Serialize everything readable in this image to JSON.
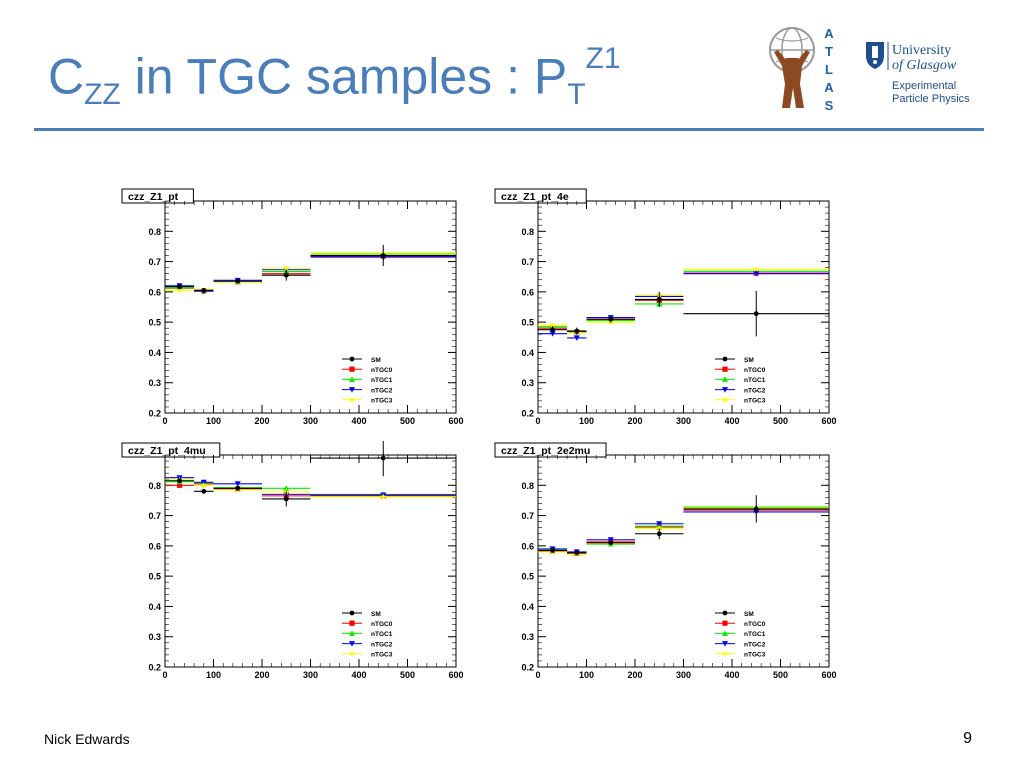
{
  "slide": {
    "title_base": "C",
    "title_sub": "ZZ",
    "title_mid": " in TGC samples : P",
    "title_sub2": "T",
    "title_sup": "Z1",
    "author": "Nick Edwards",
    "page_number": "9",
    "title_color": "#4a7ebb"
  },
  "logos": {
    "atlas_letters": [
      "A",
      "T",
      "L",
      "A",
      "S"
    ],
    "university_line1": "University",
    "university_line2": "of Glasgow",
    "dept_line1": "Experimental",
    "dept_line2": "Particle Physics"
  },
  "legend_entries": [
    {
      "label": "SM",
      "color": "#000000",
      "marker": "circle"
    },
    {
      "label": "nTGC0",
      "color": "#ff0000",
      "marker": "square"
    },
    {
      "label": "nTGC1",
      "color": "#00ee00",
      "marker": "triangle-up"
    },
    {
      "label": "nTGC2",
      "color": "#0000ff",
      "marker": "triangle-down"
    },
    {
      "label": "nTGC3",
      "color": "#ffff00",
      "marker": "star"
    }
  ],
  "chart_data": [
    {
      "type": "scatter",
      "title": "czz_Z1_pt",
      "xlim": [
        0,
        600
      ],
      "ylim": [
        0.2,
        0.9
      ],
      "xticks": [
        0,
        100,
        200,
        300,
        400,
        500,
        600
      ],
      "yticks": [
        0.2,
        0.3,
        0.4,
        0.5,
        0.6,
        0.7,
        0.8
      ],
      "bins": [
        [
          0,
          60
        ],
        [
          60,
          100
        ],
        [
          100,
          200
        ],
        [
          200,
          300
        ],
        [
          300,
          600
        ]
      ],
      "series": [
        {
          "name": "SM",
          "values": [
            0.617,
            0.605,
            0.635,
            0.655,
            0.72
          ],
          "errors": [
            0.006,
            0.006,
            0.006,
            0.018,
            0.035
          ]
        },
        {
          "name": "nTGC0",
          "values": [
            0.612,
            0.603,
            0.633,
            0.66,
            0.718
          ],
          "errors": [
            0,
            0,
            0,
            0,
            0
          ]
        },
        {
          "name": "nTGC1",
          "values": [
            0.613,
            0.605,
            0.634,
            0.667,
            0.725
          ],
          "errors": [
            0,
            0,
            0,
            0,
            0
          ]
        },
        {
          "name": "nTGC2",
          "values": [
            0.62,
            0.602,
            0.638,
            0.673,
            0.715
          ],
          "errors": [
            0,
            0,
            0,
            0,
            0
          ]
        },
        {
          "name": "nTGC3",
          "values": [
            0.605,
            0.608,
            0.632,
            0.678,
            0.728
          ],
          "errors": [
            0,
            0,
            0,
            0,
            0
          ]
        }
      ]
    },
    {
      "type": "scatter",
      "title": "czz_Z1_pt_4e",
      "xlim": [
        0,
        600
      ],
      "ylim": [
        0.2,
        0.9
      ],
      "xticks": [
        0,
        100,
        200,
        300,
        400,
        500,
        600
      ],
      "yticks": [
        0.2,
        0.3,
        0.4,
        0.5,
        0.6,
        0.7,
        0.8
      ],
      "bins": [
        [
          0,
          60
        ],
        [
          60,
          100
        ],
        [
          100,
          200
        ],
        [
          200,
          300
        ],
        [
          300,
          600
        ]
      ],
      "series": [
        {
          "name": "SM",
          "values": [
            0.475,
            0.47,
            0.51,
            0.575,
            0.528
          ],
          "errors": [
            0.012,
            0.012,
            0.012,
            0.025,
            0.075
          ]
        },
        {
          "name": "nTGC0",
          "values": [
            0.48,
            0.468,
            0.508,
            0.572,
            0.662
          ],
          "errors": [
            0,
            0,
            0,
            0,
            0
          ]
        },
        {
          "name": "nTGC1",
          "values": [
            0.485,
            0.472,
            0.505,
            0.56,
            0.668
          ],
          "errors": [
            0,
            0,
            0,
            0,
            0
          ]
        },
        {
          "name": "nTGC2",
          "values": [
            0.462,
            0.448,
            0.515,
            0.585,
            0.66
          ],
          "errors": [
            0,
            0,
            0,
            0,
            0
          ]
        },
        {
          "name": "nTGC3",
          "values": [
            0.49,
            0.465,
            0.5,
            0.59,
            0.675
          ],
          "errors": [
            0,
            0,
            0,
            0,
            0
          ]
        }
      ]
    },
    {
      "type": "scatter",
      "title": "czz_Z1_pt_4mu",
      "xlim": [
        0,
        600
      ],
      "ylim": [
        0.2,
        0.9
      ],
      "xticks": [
        0,
        100,
        200,
        300,
        400,
        500,
        600
      ],
      "yticks": [
        0.2,
        0.3,
        0.4,
        0.5,
        0.6,
        0.7,
        0.8
      ],
      "bins": [
        [
          0,
          60
        ],
        [
          60,
          100
        ],
        [
          100,
          200
        ],
        [
          200,
          300
        ],
        [
          300,
          600
        ]
      ],
      "series": [
        {
          "name": "SM",
          "values": [
            0.815,
            0.78,
            0.79,
            0.755,
            0.89
          ],
          "errors": [
            0.008,
            0.008,
            0.008,
            0.025,
            0.06
          ]
        },
        {
          "name": "nTGC0",
          "values": [
            0.8,
            0.805,
            0.788,
            0.765,
            0.765
          ],
          "errors": [
            0,
            0,
            0,
            0,
            0
          ]
        },
        {
          "name": "nTGC1",
          "values": [
            0.812,
            0.808,
            0.792,
            0.79,
            0.77
          ],
          "errors": [
            0,
            0,
            0,
            0,
            0
          ]
        },
        {
          "name": "nTGC2",
          "values": [
            0.825,
            0.81,
            0.805,
            0.77,
            0.768
          ],
          "errors": [
            0,
            0,
            0,
            0,
            0
          ]
        },
        {
          "name": "nTGC3",
          "values": [
            0.818,
            0.8,
            0.785,
            0.778,
            0.762
          ],
          "errors": [
            0,
            0,
            0,
            0,
            0
          ]
        }
      ]
    },
    {
      "type": "scatter",
      "title": "czz_Z1_pt_2e2mu",
      "xlim": [
        0,
        600
      ],
      "ylim": [
        0.2,
        0.9
      ],
      "xticks": [
        0,
        100,
        200,
        300,
        400,
        500,
        600
      ],
      "yticks": [
        0.2,
        0.3,
        0.4,
        0.5,
        0.6,
        0.7,
        0.8
      ],
      "bins": [
        [
          0,
          60
        ],
        [
          60,
          100
        ],
        [
          100,
          200
        ],
        [
          200,
          300
        ],
        [
          300,
          600
        ]
      ],
      "series": [
        {
          "name": "SM",
          "values": [
            0.585,
            0.577,
            0.61,
            0.64,
            0.722
          ],
          "errors": [
            0.008,
            0.008,
            0.008,
            0.018,
            0.045
          ]
        },
        {
          "name": "nTGC0",
          "values": [
            0.583,
            0.575,
            0.613,
            0.662,
            0.718
          ],
          "errors": [
            0,
            0,
            0,
            0,
            0
          ]
        },
        {
          "name": "nTGC1",
          "values": [
            0.586,
            0.578,
            0.606,
            0.665,
            0.728
          ],
          "errors": [
            0,
            0,
            0,
            0,
            0
          ]
        },
        {
          "name": "nTGC2",
          "values": [
            0.59,
            0.58,
            0.62,
            0.673,
            0.712
          ],
          "errors": [
            0,
            0,
            0,
            0,
            0
          ]
        },
        {
          "name": "nTGC3",
          "values": [
            0.58,
            0.572,
            0.608,
            0.658,
            0.725
          ],
          "errors": [
            0,
            0,
            0,
            0,
            0
          ]
        }
      ]
    }
  ]
}
